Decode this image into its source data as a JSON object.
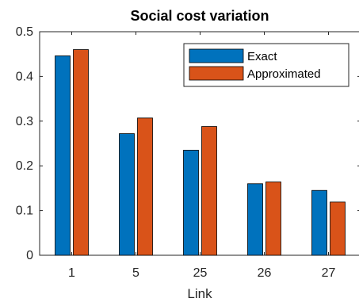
{
  "chart_data": {
    "type": "bar",
    "title": "Social cost variation",
    "xlabel": "Link",
    "ylabel": "",
    "categories": [
      "1",
      "5",
      "25",
      "26",
      "27"
    ],
    "series": [
      {
        "name": "Exact",
        "color": "#0072BD",
        "values": [
          0.446,
          0.272,
          0.235,
          0.16,
          0.145
        ]
      },
      {
        "name": "Approximated",
        "color": "#D95319",
        "values": [
          0.46,
          0.307,
          0.288,
          0.164,
          0.119
        ]
      }
    ],
    "ylim": [
      0,
      0.5
    ],
    "yticks": [
      "0",
      "0.1",
      "0.2",
      "0.3",
      "0.4",
      "0.5"
    ],
    "grid": false,
    "legend_position": "top-right"
  }
}
